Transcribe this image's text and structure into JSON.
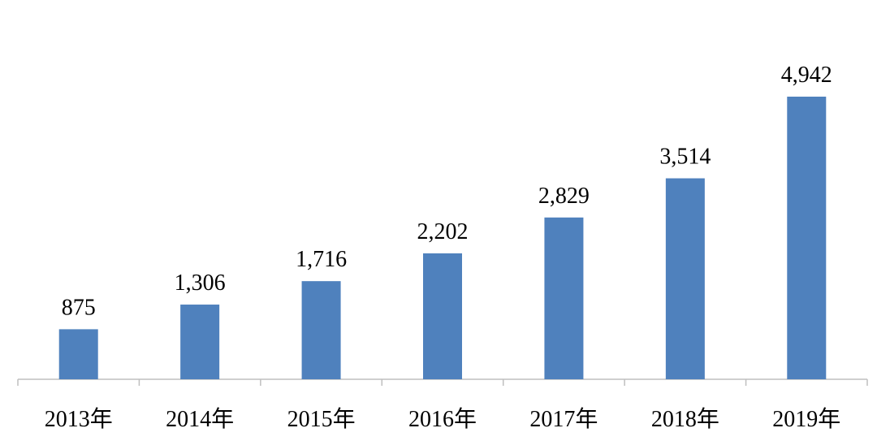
{
  "chart_data": {
    "type": "bar",
    "categories": [
      "2013年",
      "2014年",
      "2015年",
      "2016年",
      "2017年",
      "2018年",
      "2019年"
    ],
    "values": [
      875,
      1306,
      1716,
      2202,
      2829,
      3514,
      4942
    ],
    "value_labels": [
      "875",
      "1,306",
      "1,716",
      "2,202",
      "2,829",
      "3,514",
      "4,942"
    ],
    "color": "#4f81bd"
  }
}
